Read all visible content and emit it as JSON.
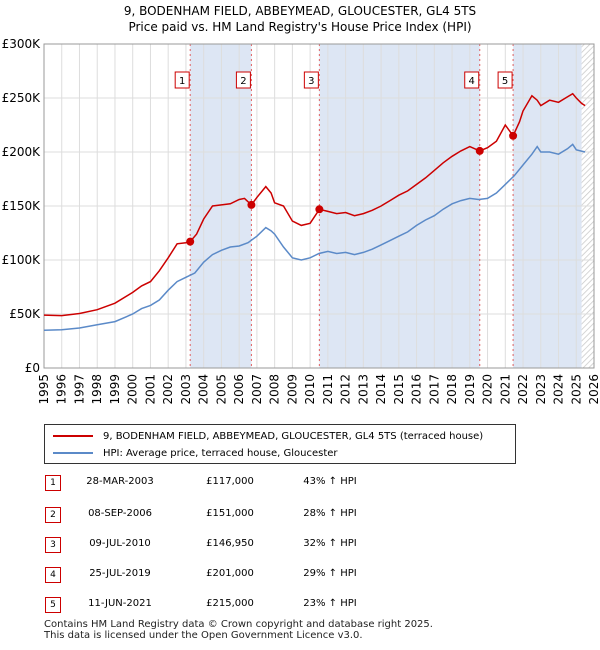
{
  "title_line1": "9, BODENHAM FIELD, ABBEYMEAD, GLOUCESTER, GL4 5TS",
  "title_line2": "Price paid vs. HM Land Registry's House Price Index (HPI)",
  "colors": {
    "property": "#cc0000",
    "hpi": "#5b8ac8",
    "shade": "#dde6f4",
    "grid": "#dddddd",
    "marker_line": "#e06060"
  },
  "chart_data": {
    "type": "line",
    "title": "Price paid vs. HM Land Registry's House Price Index (HPI)",
    "x_range": [
      1995,
      2026
    ],
    "ylim": [
      0,
      300000
    ],
    "y_ticks": [
      {
        "value": 0,
        "label": "£0"
      },
      {
        "value": 50000,
        "label": "£50K"
      },
      {
        "value": 100000,
        "label": "£100K"
      },
      {
        "value": 150000,
        "label": "£150K"
      },
      {
        "value": 200000,
        "label": "£200K"
      },
      {
        "value": 250000,
        "label": "£250K"
      },
      {
        "value": 300000,
        "label": "£300K"
      }
    ],
    "x_ticks": [
      "1995",
      "1996",
      "1997",
      "1998",
      "1999",
      "2000",
      "2001",
      "2002",
      "2003",
      "2004",
      "2005",
      "2006",
      "2007",
      "2008",
      "2009",
      "2010",
      "2011",
      "2012",
      "2013",
      "2014",
      "2015",
      "2016",
      "2017",
      "2018",
      "2019",
      "2020",
      "2021",
      "2022",
      "2023",
      "2024",
      "2025",
      "2026"
    ],
    "shaded_regions": [
      [
        2003.24,
        2006.69
      ],
      [
        2010.52,
        2019.56
      ],
      [
        2021.44,
        2025.3
      ]
    ],
    "hatched_from": 2025.3,
    "series": [
      {
        "name": "9, BODENHAM FIELD, ABBEYMEAD, GLOUCESTER, GL4 5TS (terraced house)",
        "color": "#cc0000",
        "points": [
          [
            1995,
            49000
          ],
          [
            1996,
            48500
          ],
          [
            1997,
            50500
          ],
          [
            1998,
            54000
          ],
          [
            1999,
            60000
          ],
          [
            2000,
            70000
          ],
          [
            2000.5,
            76000
          ],
          [
            2001,
            80000
          ],
          [
            2001.5,
            90000
          ],
          [
            2002,
            102000
          ],
          [
            2002.5,
            115000
          ],
          [
            2003,
            116000
          ],
          [
            2003.24,
            117000
          ],
          [
            2003.6,
            124000
          ],
          [
            2004,
            138000
          ],
          [
            2004.5,
            150000
          ],
          [
            2005,
            151000
          ],
          [
            2005.5,
            152000
          ],
          [
            2006,
            156000
          ],
          [
            2006.3,
            157000
          ],
          [
            2006.69,
            151000
          ],
          [
            2007,
            158000
          ],
          [
            2007.5,
            168000
          ],
          [
            2007.8,
            162000
          ],
          [
            2008,
            153000
          ],
          [
            2008.5,
            150000
          ],
          [
            2009,
            136000
          ],
          [
            2009.5,
            132000
          ],
          [
            2010,
            134000
          ],
          [
            2010.52,
            146950
          ],
          [
            2011,
            145000
          ],
          [
            2011.5,
            143000
          ],
          [
            2012,
            144000
          ],
          [
            2012.5,
            141000
          ],
          [
            2013,
            143000
          ],
          [
            2013.5,
            146000
          ],
          [
            2014,
            150000
          ],
          [
            2014.5,
            155000
          ],
          [
            2015,
            160000
          ],
          [
            2015.5,
            164000
          ],
          [
            2016,
            170000
          ],
          [
            2016.5,
            176000
          ],
          [
            2017,
            183000
          ],
          [
            2017.5,
            190000
          ],
          [
            2018,
            196000
          ],
          [
            2018.5,
            201000
          ],
          [
            2019,
            205000
          ],
          [
            2019.56,
            201000
          ],
          [
            2020,
            204000
          ],
          [
            2020.5,
            210000
          ],
          [
            2021,
            225000
          ],
          [
            2021.44,
            215000
          ],
          [
            2021.8,
            228000
          ],
          [
            2022,
            238000
          ],
          [
            2022.5,
            252000
          ],
          [
            2022.8,
            248000
          ],
          [
            2023,
            243000
          ],
          [
            2023.5,
            248000
          ],
          [
            2024,
            246000
          ],
          [
            2024.5,
            251000
          ],
          [
            2024.8,
            254000
          ],
          [
            2025,
            250000
          ],
          [
            2025.3,
            245000
          ],
          [
            2025.5,
            243000
          ]
        ]
      },
      {
        "name": "HPI: Average price, terraced house, Gloucester",
        "color": "#5b8ac8",
        "points": [
          [
            1995,
            35000
          ],
          [
            1996,
            35500
          ],
          [
            1997,
            37000
          ],
          [
            1998,
            40000
          ],
          [
            1999,
            43000
          ],
          [
            2000,
            50000
          ],
          [
            2000.5,
            55000
          ],
          [
            2001,
            58000
          ],
          [
            2001.5,
            63000
          ],
          [
            2002,
            72000
          ],
          [
            2002.5,
            80000
          ],
          [
            2003,
            84000
          ],
          [
            2003.5,
            88000
          ],
          [
            2004,
            98000
          ],
          [
            2004.5,
            105000
          ],
          [
            2005,
            109000
          ],
          [
            2005.5,
            112000
          ],
          [
            2006,
            113000
          ],
          [
            2006.5,
            116000
          ],
          [
            2007,
            122000
          ],
          [
            2007.5,
            130000
          ],
          [
            2007.8,
            127000
          ],
          [
            2008,
            124000
          ],
          [
            2008.5,
            112000
          ],
          [
            2009,
            102000
          ],
          [
            2009.5,
            100000
          ],
          [
            2010,
            102000
          ],
          [
            2010.5,
            106000
          ],
          [
            2011,
            108000
          ],
          [
            2011.5,
            106000
          ],
          [
            2012,
            107000
          ],
          [
            2012.5,
            105000
          ],
          [
            2013,
            107000
          ],
          [
            2013.5,
            110000
          ],
          [
            2014,
            114000
          ],
          [
            2014.5,
            118000
          ],
          [
            2015,
            122000
          ],
          [
            2015.5,
            126000
          ],
          [
            2016,
            132000
          ],
          [
            2016.5,
            137000
          ],
          [
            2017,
            141000
          ],
          [
            2017.5,
            147000
          ],
          [
            2018,
            152000
          ],
          [
            2018.5,
            155000
          ],
          [
            2019,
            157000
          ],
          [
            2019.5,
            156000
          ],
          [
            2020,
            157000
          ],
          [
            2020.5,
            162000
          ],
          [
            2021,
            170000
          ],
          [
            2021.5,
            178000
          ],
          [
            2022,
            188000
          ],
          [
            2022.5,
            198000
          ],
          [
            2022.8,
            205000
          ],
          [
            2023,
            200000
          ],
          [
            2023.5,
            200000
          ],
          [
            2024,
            198000
          ],
          [
            2024.5,
            203000
          ],
          [
            2024.8,
            207000
          ],
          [
            2025,
            202000
          ],
          [
            2025.5,
            200000
          ]
        ]
      }
    ],
    "sales": [
      {
        "label": "1",
        "x": 2003.24,
        "price": 117000
      },
      {
        "label": "2",
        "x": 2006.69,
        "price": 151000
      },
      {
        "label": "3",
        "x": 2010.52,
        "price": 146950
      },
      {
        "label": "4",
        "x": 2019.56,
        "price": 201000
      },
      {
        "label": "5",
        "x": 2021.44,
        "price": 215000
      }
    ]
  },
  "legend": {
    "property": "9, BODENHAM FIELD, ABBEYMEAD, GLOUCESTER, GL4 5TS (terraced house)",
    "hpi": "HPI: Average price, terraced house, Gloucester"
  },
  "transactions": [
    {
      "num": "1",
      "date": "28-MAR-2003",
      "price": "£117,000",
      "hpi": "43% ↑ HPI"
    },
    {
      "num": "2",
      "date": "08-SEP-2006",
      "price": "£151,000",
      "hpi": "28% ↑ HPI"
    },
    {
      "num": "3",
      "date": "09-JUL-2010",
      "price": "£146,950",
      "hpi": "32% ↑ HPI"
    },
    {
      "num": "4",
      "date": "25-JUL-2019",
      "price": "£201,000",
      "hpi": "29% ↑ HPI"
    },
    {
      "num": "5",
      "date": "11-JUN-2021",
      "price": "£215,000",
      "hpi": "23% ↑ HPI"
    }
  ],
  "footer": {
    "line1": "Contains HM Land Registry data © Crown copyright and database right 2025.",
    "line2": "This data is licensed under the Open Government Licence v3.0."
  }
}
